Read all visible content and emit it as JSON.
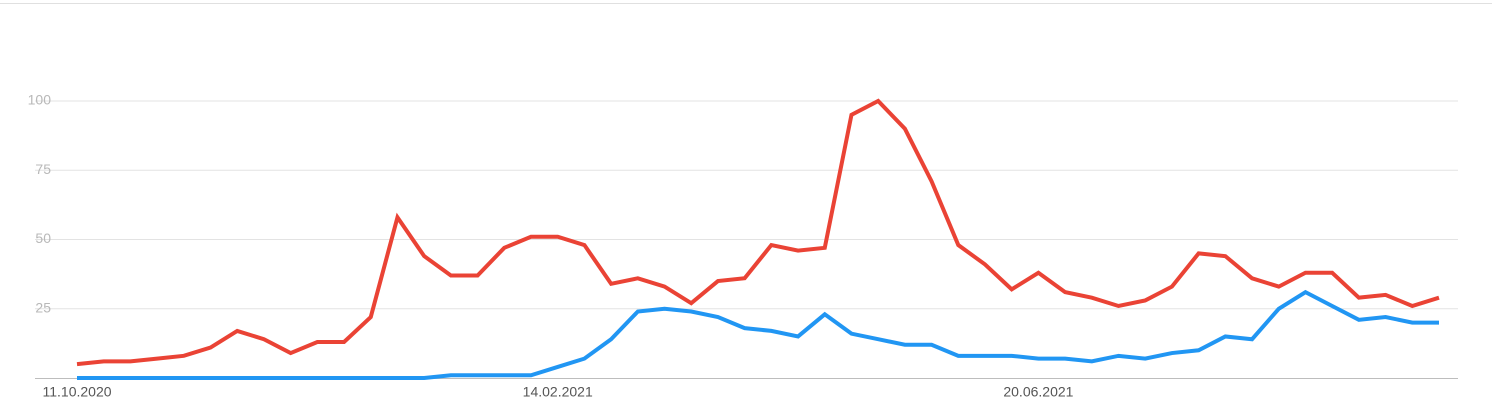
{
  "chart_data": {
    "type": "line",
    "categories": [
      "11.10.2020",
      null,
      null,
      null,
      null,
      null,
      null,
      null,
      null,
      null,
      null,
      null,
      null,
      null,
      null,
      null,
      null,
      null,
      "14.02.2021",
      null,
      null,
      null,
      null,
      null,
      null,
      null,
      null,
      null,
      null,
      null,
      null,
      null,
      null,
      null,
      null,
      null,
      "20.06.2021",
      null,
      null,
      null,
      null,
      null,
      null,
      null,
      null,
      null,
      null,
      null,
      null,
      null,
      null,
      null
    ],
    "series": [
      {
        "color": "#ea4335",
        "values": [
          5,
          6,
          6,
          7,
          8,
          11,
          17,
          14,
          9,
          13,
          13,
          22,
          58,
          44,
          37,
          37,
          47,
          51,
          51,
          48,
          34,
          36,
          33,
          27,
          35,
          36,
          48,
          46,
          47,
          95,
          100,
          90,
          71,
          48,
          41,
          32,
          38,
          31,
          29,
          26,
          28,
          33,
          45,
          44,
          36,
          33,
          38,
          38,
          29,
          30,
          26,
          29
        ]
      },
      {
        "color": "#2196f3",
        "values": [
          0,
          0,
          0,
          0,
          0,
          0,
          0,
          0,
          0,
          0,
          0,
          0,
          0,
          0,
          1,
          1,
          1,
          1,
          4,
          7,
          14,
          24,
          25,
          24,
          22,
          18,
          17,
          15,
          23,
          16,
          14,
          12,
          12,
          8,
          8,
          8,
          7,
          7,
          6,
          8,
          7,
          9,
          10,
          15,
          14,
          25,
          31,
          26,
          21,
          22,
          20,
          20
        ]
      }
    ],
    "ylim": [
      0,
      100
    ],
    "yticks": [
      25,
      50,
      75,
      100
    ],
    "grid": true
  }
}
